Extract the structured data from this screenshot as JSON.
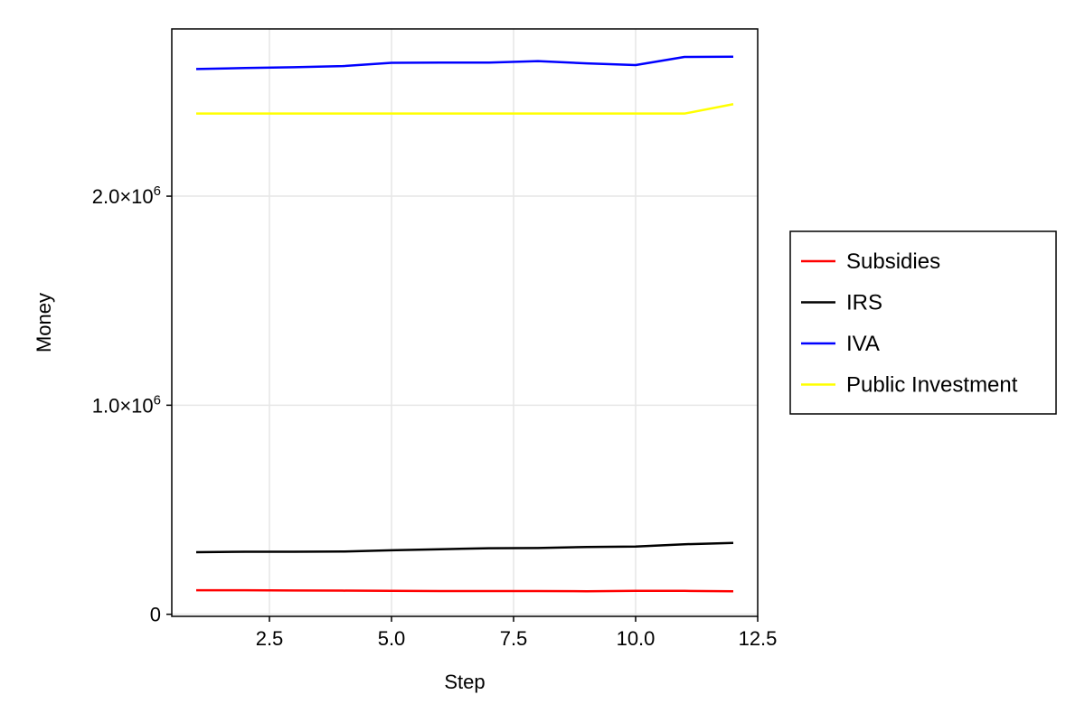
{
  "chart_data": {
    "type": "line",
    "xlabel": "Step",
    "ylabel": "Money",
    "xlim": [
      0.5,
      12.5
    ],
    "ylim": [
      -10000,
      2800000
    ],
    "x_ticks": [
      2.5,
      5.0,
      7.5,
      10.0,
      12.5
    ],
    "x_tick_labels": [
      "2.5",
      "5.0",
      "7.5",
      "10.0",
      "12.5"
    ],
    "y_ticks": [
      0,
      1000000,
      2000000
    ],
    "y_tick_labels": [
      {
        "base": "0",
        "exp": ""
      },
      {
        "base": "1.0×10",
        "exp": "6"
      },
      {
        "base": "2.0×10",
        "exp": "6"
      }
    ],
    "grid": true,
    "legend_position": "right",
    "x": [
      1,
      2,
      3,
      4,
      5,
      6,
      7,
      8,
      9,
      10,
      11,
      12
    ],
    "series": [
      {
        "name": "Subsidies",
        "color": "#ff0000",
        "values": [
          115000,
          115000,
          114000,
          113000,
          112000,
          111000,
          111000,
          111000,
          110000,
          112000,
          112000,
          110000
        ]
      },
      {
        "name": "IRS",
        "color": "#000000",
        "values": [
          297000,
          299000,
          299000,
          300000,
          306000,
          311000,
          316000,
          317000,
          322000,
          324000,
          335000,
          341000
        ]
      },
      {
        "name": "IVA",
        "color": "#0000ff",
        "values": [
          2608000,
          2613000,
          2617000,
          2622000,
          2638000,
          2639000,
          2639000,
          2646000,
          2635000,
          2627000,
          2666000,
          2667000
        ]
      },
      {
        "name": "Public Investment",
        "color": "#ffff00",
        "values": [
          2395000,
          2395000,
          2395000,
          2395000,
          2395000,
          2395000,
          2395000,
          2395000,
          2395000,
          2395000,
          2395000,
          2440000
        ]
      }
    ]
  }
}
